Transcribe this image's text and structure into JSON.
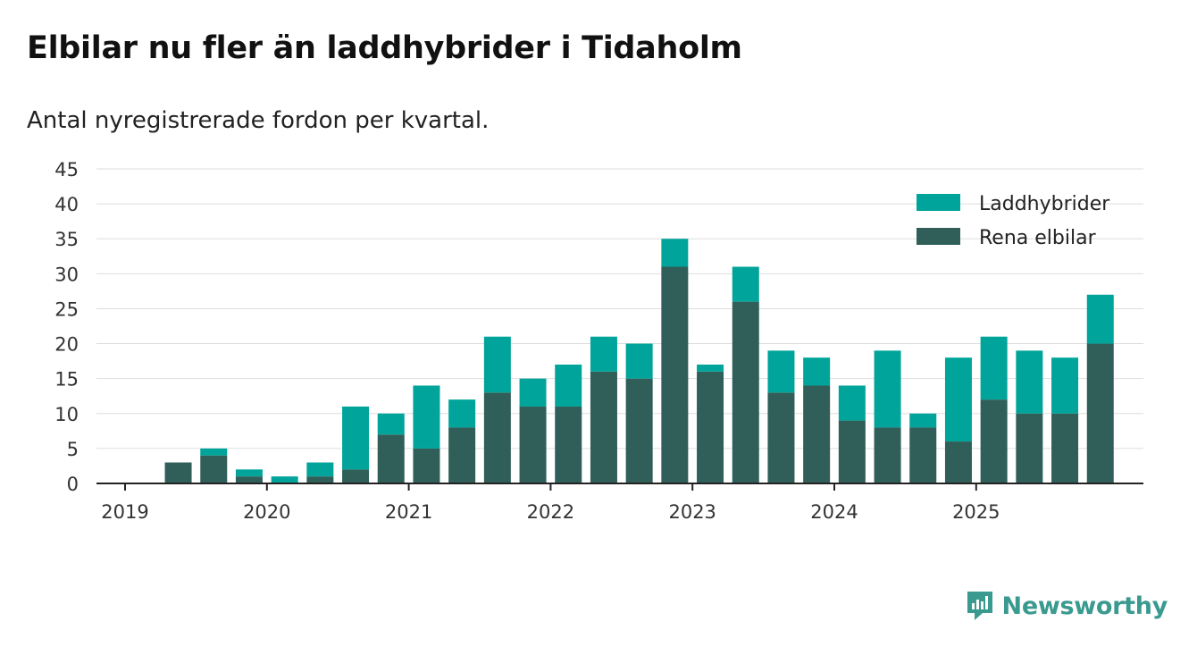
{
  "title": "Elbilar nu fler än laddhybrider i Tidaholm",
  "subtitle": "Antal nyregistrerade fordon per kvartal.",
  "brand": "Newsworthy",
  "colors": {
    "hybrid": "#00a49a",
    "electric": "#2f5f58",
    "grid": "#dddddd",
    "axis": "#222222",
    "brand": "#3a9a8f"
  },
  "chart_data": {
    "type": "bar",
    "stacked": true,
    "title": "Elbilar nu fler än laddhybrider i Tidaholm",
    "subtitle": "Antal nyregistrerade fordon per kvartal.",
    "xlabel": "",
    "ylabel": "",
    "ylim": [
      0,
      45
    ],
    "yticks": [
      0,
      5,
      10,
      15,
      20,
      25,
      30,
      35,
      40,
      45
    ],
    "xticks": [
      "2019",
      "2020",
      "2021",
      "2022",
      "2023",
      "2024",
      "2025"
    ],
    "legend_position": "top-right",
    "legend": [
      "Laddhybrider",
      "Rena elbilar"
    ],
    "categories": [
      "2019 Q1",
      "2019 Q2",
      "2019 Q3",
      "2019 Q4",
      "2020 Q1",
      "2020 Q2",
      "2020 Q3",
      "2020 Q4",
      "2021 Q1",
      "2021 Q2",
      "2021 Q3",
      "2021 Q4",
      "2022 Q1",
      "2022 Q2",
      "2022 Q3",
      "2022 Q4",
      "2023 Q1",
      "2023 Q2",
      "2023 Q3",
      "2023 Q4",
      "2024 Q1",
      "2024 Q2",
      "2024 Q3",
      "2024 Q4",
      "2025 Q1",
      "2025 Q2",
      "2025 Q3",
      "2025 Q4"
    ],
    "series": [
      {
        "name": "Rena elbilar",
        "values": [
          0,
          3,
          4,
          1,
          0,
          1,
          2,
          7,
          5,
          8,
          13,
          11,
          11,
          16,
          15,
          31,
          16,
          26,
          13,
          14,
          9,
          8,
          8,
          6,
          12,
          10,
          10,
          20
        ]
      },
      {
        "name": "Laddhybrider",
        "values": [
          0,
          0,
          1,
          1,
          1,
          2,
          9,
          3,
          9,
          4,
          8,
          4,
          6,
          5,
          5,
          4,
          1,
          5,
          6,
          4,
          5,
          11,
          2,
          12,
          9,
          9,
          8,
          7
        ]
      }
    ]
  }
}
